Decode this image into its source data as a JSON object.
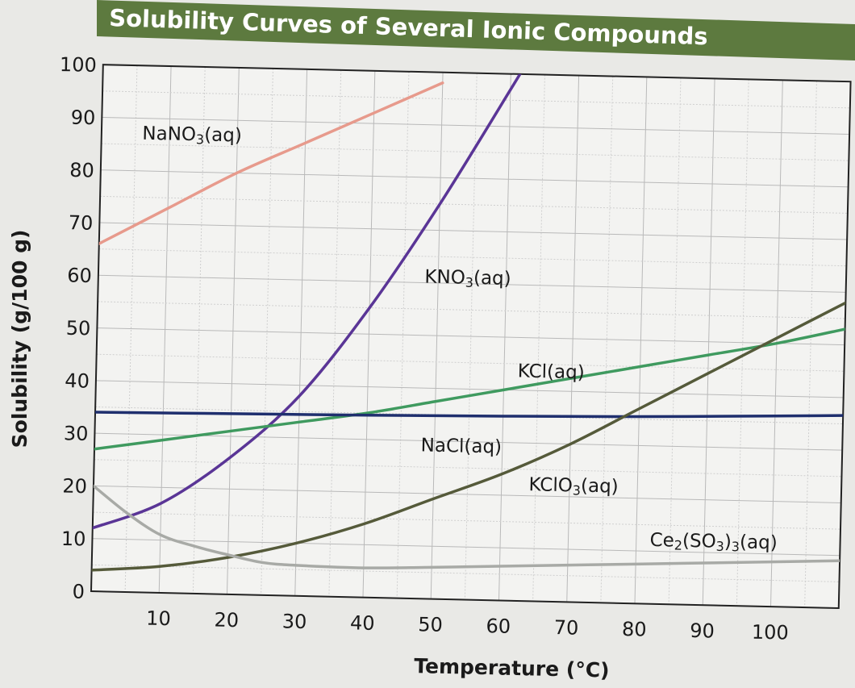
{
  "chart_data": {
    "type": "line",
    "title": "Solubility Curves of Several Ionic Compounds",
    "xlabel": "Temperature (°C)",
    "ylabel": "Solubility (g/100 g)",
    "xlim": [
      0,
      110
    ],
    "ylim": [
      0,
      100
    ],
    "x_ticks": [
      "10",
      "20",
      "30",
      "40",
      "50",
      "60",
      "70",
      "80",
      "90",
      "100"
    ],
    "y_ticks": [
      "0",
      "10",
      "20",
      "30",
      "40",
      "50",
      "60",
      "70",
      "80",
      "90",
      "100"
    ],
    "grid": true,
    "legend": "none (curves labeled directly)",
    "series": [
      {
        "name": "NaNO",
        "label_parts": [
          {
            "t": "NaNO"
          },
          {
            "t": "3",
            "sub": true
          },
          {
            "t": "(aq)"
          }
        ],
        "color": "#e79a8c",
        "x": [
          0,
          10,
          20,
          30,
          40,
          50
        ],
        "y": [
          66,
          73,
          80,
          86,
          92,
          98
        ]
      },
      {
        "name": "KNO",
        "label_parts": [
          {
            "t": "KNO"
          },
          {
            "t": "3",
            "sub": true
          },
          {
            "t": "(aq)"
          }
        ],
        "color": "#5a3596",
        "x": [
          0,
          10,
          20,
          30,
          40,
          50,
          60,
          64
        ],
        "y": [
          12,
          17,
          26,
          38,
          55,
          75,
          97,
          106
        ]
      },
      {
        "name": "KCl",
        "label_parts": [
          {
            "t": "KCl(aq)"
          }
        ],
        "color": "#3f9a5f",
        "x": [
          0,
          10,
          20,
          30,
          40,
          50,
          60,
          70,
          80,
          90,
          100,
          110
        ],
        "y": [
          27,
          29,
          31,
          33,
          35,
          37.5,
          40,
          42.5,
          45,
          47.5,
          50,
          53
        ]
      },
      {
        "name": "NaCl",
        "label_parts": [
          {
            "t": "NaCl(aq)"
          }
        ],
        "color": "#1f2f6e",
        "x": [
          0,
          20,
          40,
          60,
          80,
          100,
          110
        ],
        "y": [
          34,
          34.3,
          34.6,
          35,
          35.5,
          36.2,
          36.6
        ]
      },
      {
        "name": "KClO",
        "label_parts": [
          {
            "t": "KClO"
          },
          {
            "t": "3",
            "sub": true
          },
          {
            "t": "(aq)"
          }
        ],
        "color": "#555a3a",
        "x": [
          0,
          10,
          20,
          30,
          40,
          50,
          60,
          70,
          80,
          90,
          100,
          110
        ],
        "y": [
          4,
          5,
          7,
          10,
          14,
          19,
          24,
          30,
          37,
          44,
          51,
          58
        ]
      },
      {
        "name": "Ce",
        "label_parts": [
          {
            "t": "Ce"
          },
          {
            "t": "2",
            "sub": true
          },
          {
            "t": "(SO"
          },
          {
            "t": "3",
            "sub": true
          },
          {
            "t": ")"
          },
          {
            "t": "3",
            "sub": true
          },
          {
            "t": "(aq)"
          }
        ],
        "color": "#a8aaa6",
        "x": [
          0,
          5,
          10,
          15,
          20,
          25,
          30,
          40,
          50,
          60,
          80,
          100,
          110
        ],
        "y": [
          20,
          15,
          11,
          9,
          7.5,
          6.2,
          5.8,
          5.6,
          6,
          6.5,
          7.5,
          8.5,
          9
        ]
      }
    ]
  }
}
